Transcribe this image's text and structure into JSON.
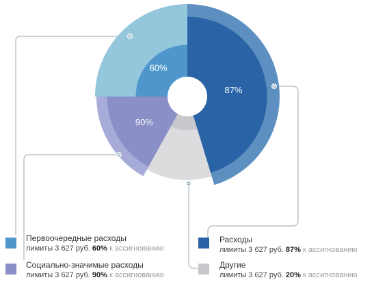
{
  "chart_data": {
    "type": "pie",
    "slices": [
      {
        "name": "Расходы",
        "sub": "лимиты 3 627 руб.",
        "pct": "87%",
        "note": "к ассигнованию",
        "value": 87,
        "label": "87%",
        "color": "#2a63a6",
        "outer_color": "#5d8fc0"
      },
      {
        "name": "Другие",
        "sub": "лимиты 3 627 руб.",
        "pct": "20%",
        "note": "к ассигнованию",
        "value": 20,
        "label": "",
        "color": "#c8c8cc",
        "outer_color": "#dcdcdf"
      },
      {
        "name": "Социально-значимые расходы",
        "sub": "лимиты 3 627 руб.",
        "pct": "90%",
        "note": "к ассигнованию",
        "value": 90,
        "label": "90%",
        "color": "#8a8fc8",
        "outer_color": "#a7abd7"
      },
      {
        "name": "Первоочередные расходы",
        "sub": "лимиты 3 627 руб.",
        "pct": "60%",
        "note": "к ассигнованию",
        "value": 60,
        "label": "60%",
        "color": "#4f96cd",
        "outer_color": "#94c6dc"
      }
    ]
  }
}
